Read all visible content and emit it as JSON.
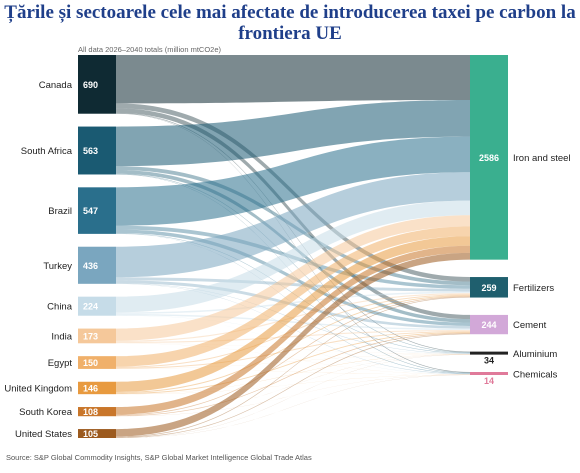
{
  "title": "Țările și sectoarele cele mai afectate de introducerea taxei pe carbon la frontiera UE",
  "subtitle": "All data 2026–2040 totals (million mtCO2e)",
  "source": "Source: S&P Global Commodity Insights, S&P Global Market Intelligence Global Trade Atlas",
  "chart_data": {
    "type": "sankey",
    "units": "million mtCO2e",
    "sources": [
      {
        "name": "Canada",
        "value": 690,
        "color": "#0f2a33"
      },
      {
        "name": "South Africa",
        "value": 563,
        "color": "#1a5a72"
      },
      {
        "name": "Brazil",
        "value": 547,
        "color": "#2a6f8c"
      },
      {
        "name": "Turkey",
        "value": 436,
        "color": "#7aa6bf"
      },
      {
        "name": "China",
        "value": 224,
        "color": "#c6dce8"
      },
      {
        "name": "India",
        "value": 173,
        "color": "#f5c89a"
      },
      {
        "name": "Egypt",
        "value": 150,
        "color": "#f0b06a"
      },
      {
        "name": "United Kingdom",
        "value": 146,
        "color": "#e89a3f"
      },
      {
        "name": "South Korea",
        "value": 108,
        "color": "#c9762a"
      },
      {
        "name": "United States",
        "value": 105,
        "color": "#9c5a1e"
      }
    ],
    "targets": [
      {
        "name": "Iron and steel",
        "value": 2586,
        "color": "#3aaf8f"
      },
      {
        "name": "Fertilizers",
        "value": 259,
        "color": "#1f5f6e"
      },
      {
        "name": "Cement",
        "value": 244,
        "color": "#d2a8d8"
      },
      {
        "name": "Aluminium",
        "value": 34,
        "color": "#222222"
      },
      {
        "name": "Chemicals",
        "value": 14,
        "color": "#e07a9a"
      }
    ]
  }
}
